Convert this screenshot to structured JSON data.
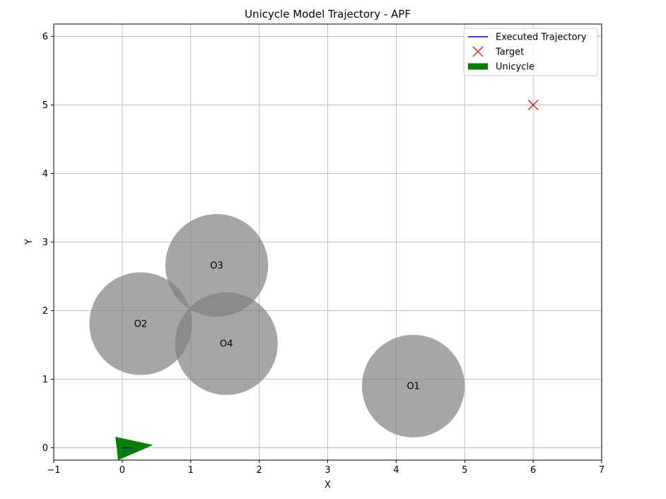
{
  "chart_data": {
    "type": "scatter",
    "title": "Unicycle Model Trajectory - APF",
    "xlabel": "X",
    "ylabel": "Y",
    "xlim": [
      -1,
      7
    ],
    "ylim": [
      -0.18,
      6.18
    ],
    "xticks": [
      -1,
      0,
      1,
      2,
      3,
      4,
      5,
      6,
      7
    ],
    "yticks": [
      0,
      1,
      2,
      3,
      4,
      5,
      6
    ],
    "grid": true,
    "legend_position": "top-right",
    "legend": [
      {
        "name": "Executed Trajectory",
        "kind": "line",
        "color": "#0000cc"
      },
      {
        "name": "Target",
        "kind": "x-marker",
        "color": "#d62728"
      },
      {
        "name": "Unicycle",
        "kind": "patch",
        "color": "#008000"
      }
    ],
    "obstacles": [
      {
        "name": "O1",
        "x": 4.25,
        "y": 0.9,
        "r": 0.75
      },
      {
        "name": "O2",
        "x": 0.27,
        "y": 1.81,
        "r": 0.75
      },
      {
        "name": "O3",
        "x": 1.38,
        "y": 2.66,
        "r": 0.75
      },
      {
        "name": "O4",
        "x": 1.52,
        "y": 1.52,
        "r": 0.75
      }
    ],
    "target": {
      "x": 6.0,
      "y": 5.0
    },
    "trajectory": {
      "x": [
        0.0,
        0.15
      ],
      "y": [
        0.0,
        0.0
      ]
    },
    "unicycle": {
      "points": [
        [
          -0.1,
          0.16
        ],
        [
          0.45,
          0.04
        ],
        [
          -0.06,
          -0.18
        ]
      ]
    },
    "colors": {
      "obstacle": "#808080",
      "grid": "#b0b0b0",
      "trajectory": "#0000cc",
      "target": "#d62728",
      "unicycle": "#008000"
    }
  }
}
